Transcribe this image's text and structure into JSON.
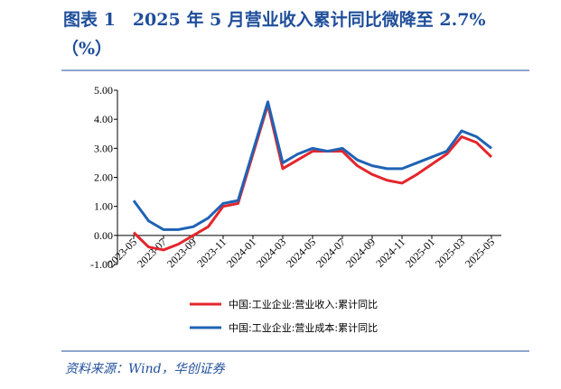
{
  "chart_data": {
    "type": "line",
    "title": "图表 1　2025 年 5 月营业收入累计同比微降至 2.7%",
    "unit": "（%）",
    "source": "资料来源：Wind，华创证券",
    "x": [
      "2023-05",
      "2023-06",
      "2023-07",
      "2023-08",
      "2023-09",
      "2023-10",
      "2023-11",
      "2023-12",
      "2024-02",
      "2024-03",
      "2024-04",
      "2024-05",
      "2024-06",
      "2024-07",
      "2024-08",
      "2024-09",
      "2024-10",
      "2024-11",
      "2024-12",
      "2025-02",
      "2025-03",
      "2025-04",
      "2025-05"
    ],
    "xticks": [
      "2023-05",
      "2023-07",
      "2023-09",
      "2023-11",
      "2024-01",
      "2024-03",
      "2024-05",
      "2024-07",
      "2024-09",
      "2024-11",
      "2025-01",
      "2025-03",
      "2025-05"
    ],
    "series": [
      {
        "name": "中国:工业企业:营业收入:累计同比",
        "color": "#e3262d",
        "values": [
          0.1,
          -0.4,
          -0.5,
          -0.3,
          0.0,
          0.3,
          1.0,
          1.1,
          4.5,
          2.3,
          2.6,
          2.9,
          2.9,
          2.9,
          2.4,
          2.1,
          1.9,
          1.8,
          2.1,
          2.8,
          3.4,
          3.2,
          2.7
        ]
      },
      {
        "name": "中国:工业企业:营业成本:累计同比",
        "color": "#1f63b4",
        "values": [
          1.2,
          0.5,
          0.2,
          0.2,
          0.3,
          0.6,
          1.1,
          1.2,
          4.6,
          2.5,
          2.8,
          3.0,
          2.9,
          3.0,
          2.6,
          2.4,
          2.3,
          2.3,
          2.5,
          2.9,
          3.6,
          3.4,
          3.0
        ]
      }
    ],
    "ylim": [
      -1,
      5
    ],
    "yticks": [
      {
        "value": -1,
        "label": "-1.00"
      },
      {
        "value": 0,
        "label": "0.00"
      },
      {
        "value": 1,
        "label": "1.00"
      },
      {
        "value": 2,
        "label": "2.00"
      },
      {
        "value": 3,
        "label": "3.00"
      },
      {
        "value": 4,
        "label": "4.00"
      },
      {
        "value": 5,
        "label": "5.00"
      }
    ]
  }
}
